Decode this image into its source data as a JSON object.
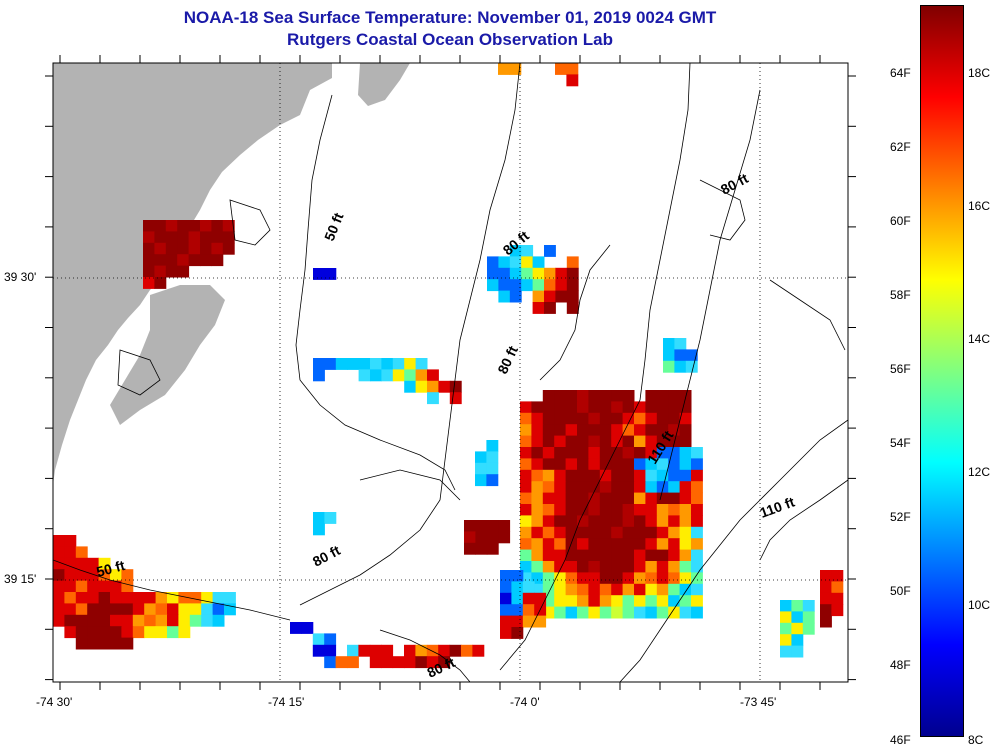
{
  "title_line1": "NOAA-18 Sea Surface Temperature:  November 01, 2019 0024 GMT",
  "title_line2": "Rutgers Coastal Ocean Observation Lab",
  "map": {
    "x_ticks": [
      "-74 30'",
      "-74 15'",
      "-74 0'",
      "-73 45'"
    ],
    "y_ticks": [
      "39 30'",
      "39 15'"
    ],
    "contour_labels": [
      "50 ft",
      "50 ft",
      "80 ft",
      "80 ft",
      "80 ft",
      "80 ft",
      "80 ft",
      "110 ft",
      "110 ft"
    ],
    "colors": {
      "land": "#b3b3b3",
      "contour": "#000000",
      "grid": "#000000"
    }
  },
  "colorbar": {
    "fahrenheit_labels": [
      "64F",
      "62F",
      "60F",
      "58F",
      "56F",
      "54F",
      "52F",
      "50F",
      "48F",
      "46F"
    ],
    "celsius_labels": [
      "18C",
      "16C",
      "14C",
      "12C",
      "10C",
      "8C"
    ],
    "range_celsius": [
      8,
      19
    ],
    "colormap": [
      "#00008f",
      "#0000ff",
      "#0080ff",
      "#00ffff",
      "#80ff80",
      "#ffff00",
      "#ff8000",
      "#ff0000",
      "#800000"
    ]
  }
}
